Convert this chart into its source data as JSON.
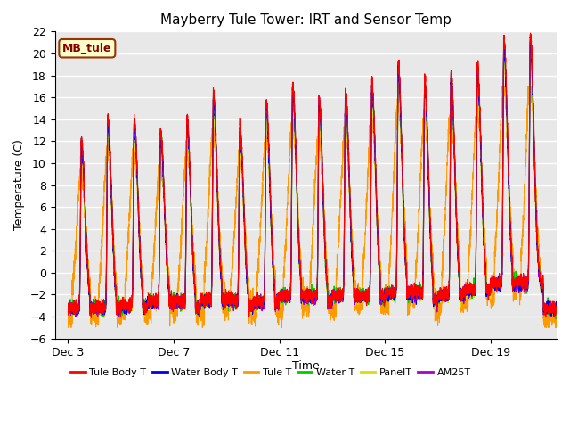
{
  "title": "Mayberry Tule Tower: IRT and Sensor Temp",
  "xlabel": "Time",
  "ylabel": "Temperature (C)",
  "ylim": [
    -6,
    22
  ],
  "yticks": [
    -6,
    -4,
    -2,
    0,
    2,
    4,
    6,
    8,
    10,
    12,
    14,
    16,
    18,
    20,
    22
  ],
  "xtick_labels": [
    "Dec 3",
    "Dec 7",
    "Dec 11",
    "Dec 15",
    "Dec 19"
  ],
  "xtick_positions": [
    2,
    6,
    10,
    14,
    18
  ],
  "xlim": [
    1.5,
    20.5
  ],
  "series_colors": {
    "Tule Body T": "#ff0000",
    "Water Body T": "#0000ee",
    "Tule T": "#ff9900",
    "Water T": "#00cc00",
    "PanelT": "#dddd00",
    "AM25T": "#aa00cc"
  },
  "legend_label": "MB_tule",
  "legend_bbox_facecolor": "#ffffcc",
  "legend_bbox_edgecolor": "#993300",
  "background_color": "#e8e8e8",
  "start_day": 2.0,
  "end_day": 20.5
}
